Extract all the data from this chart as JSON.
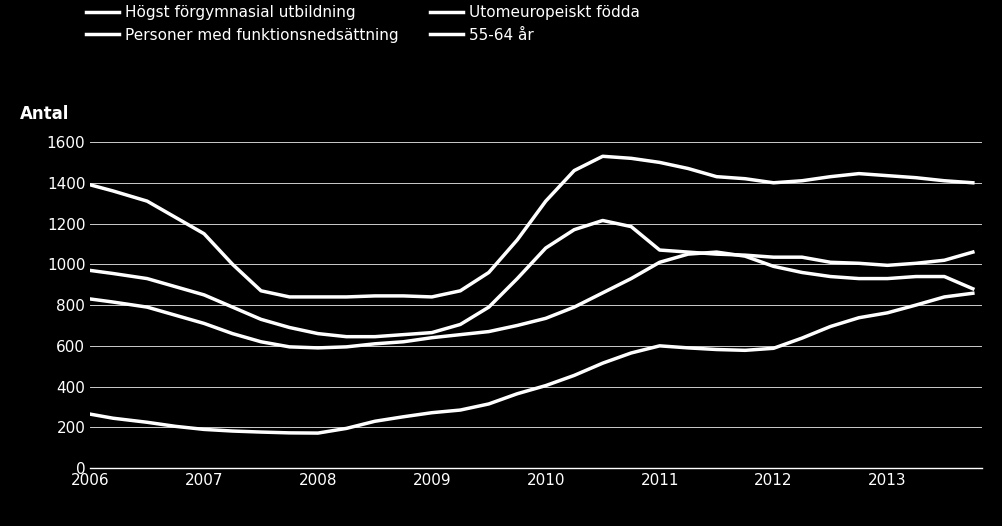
{
  "background_color": "#000000",
  "text_color": "#ffffff",
  "ylabel": "Antal",
  "ylim": [
    0,
    1600
  ],
  "yticks": [
    0,
    200,
    400,
    600,
    800,
    1000,
    1200,
    1400,
    1600
  ],
  "xlim": [
    2006.0,
    2013.83
  ],
  "xticks": [
    2006,
    2007,
    2008,
    2009,
    2010,
    2011,
    2012,
    2013
  ],
  "legend_row1": [
    "Högst förgymnasial utbildning",
    "Personer med funktionsnedsättning"
  ],
  "legend_row2": [
    "Utomeuropeiskt födda",
    "55-64 år"
  ],
  "line_color": "#ffffff",
  "line_width": 2.5,
  "series": {
    "hogst_forgymnasial": {
      "x": [
        2006.0,
        2006.2,
        2006.5,
        2006.75,
        2007.0,
        2007.25,
        2007.5,
        2007.75,
        2008.0,
        2008.25,
        2008.5,
        2008.75,
        2009.0,
        2009.25,
        2009.5,
        2009.75,
        2010.0,
        2010.25,
        2010.5,
        2010.75,
        2011.0,
        2011.25,
        2011.5,
        2011.75,
        2012.0,
        2012.25,
        2012.5,
        2012.75,
        2013.0,
        2013.25,
        2013.5,
        2013.75
      ],
      "y": [
        1390,
        1360,
        1310,
        1230,
        1150,
        1000,
        870,
        840,
        840,
        840,
        845,
        845,
        840,
        870,
        960,
        1120,
        1310,
        1460,
        1530,
        1520,
        1500,
        1470,
        1430,
        1420,
        1400,
        1410,
        1430,
        1445,
        1435,
        1425,
        1410,
        1400
      ]
    },
    "personer_med_funktionsned": {
      "x": [
        2006.0,
        2006.2,
        2006.5,
        2006.75,
        2007.0,
        2007.25,
        2007.5,
        2007.75,
        2008.0,
        2008.25,
        2008.5,
        2008.75,
        2009.0,
        2009.25,
        2009.5,
        2009.75,
        2010.0,
        2010.25,
        2010.5,
        2010.75,
        2011.0,
        2011.25,
        2011.5,
        2011.75,
        2012.0,
        2012.25,
        2012.5,
        2012.75,
        2013.0,
        2013.25,
        2013.5,
        2013.75
      ],
      "y": [
        970,
        955,
        930,
        890,
        850,
        790,
        730,
        690,
        660,
        645,
        645,
        655,
        665,
        705,
        790,
        930,
        1080,
        1170,
        1215,
        1185,
        1070,
        1060,
        1050,
        1045,
        1035,
        1035,
        1010,
        1005,
        995,
        1005,
        1020,
        1060
      ]
    },
    "utomeuropeiskt_fodda": {
      "x": [
        2006.0,
        2006.2,
        2006.5,
        2006.75,
        2007.0,
        2007.25,
        2007.5,
        2007.75,
        2008.0,
        2008.25,
        2008.5,
        2008.75,
        2009.0,
        2009.25,
        2009.5,
        2009.75,
        2010.0,
        2010.25,
        2010.5,
        2010.75,
        2011.0,
        2011.25,
        2011.5,
        2011.75,
        2012.0,
        2012.25,
        2012.5,
        2012.75,
        2013.0,
        2013.25,
        2013.5,
        2013.75
      ],
      "y": [
        830,
        815,
        790,
        750,
        710,
        660,
        620,
        595,
        590,
        595,
        610,
        620,
        640,
        655,
        670,
        700,
        735,
        790,
        860,
        930,
        1010,
        1050,
        1060,
        1040,
        990,
        960,
        940,
        930,
        930,
        940,
        940,
        880
      ]
    },
    "55_64_ar": {
      "x": [
        2006.0,
        2006.2,
        2006.5,
        2006.75,
        2007.0,
        2007.25,
        2007.5,
        2007.75,
        2008.0,
        2008.25,
        2008.5,
        2008.75,
        2009.0,
        2009.25,
        2009.5,
        2009.75,
        2010.0,
        2010.25,
        2010.5,
        2010.75,
        2011.0,
        2011.25,
        2011.5,
        2011.75,
        2012.0,
        2012.25,
        2012.5,
        2012.75,
        2013.0,
        2013.25,
        2013.5,
        2013.75
      ],
      "y": [
        265,
        245,
        225,
        205,
        190,
        182,
        177,
        173,
        172,
        195,
        230,
        252,
        272,
        285,
        315,
        365,
        405,
        455,
        515,
        565,
        600,
        590,
        582,
        578,
        588,
        638,
        695,
        738,
        762,
        800,
        840,
        858
      ]
    }
  }
}
